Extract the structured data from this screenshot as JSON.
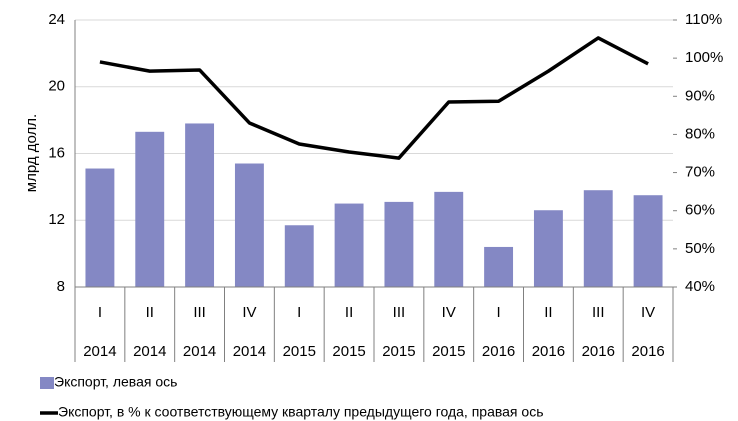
{
  "chart_data": {
    "type": "bar",
    "y_label": "млрд долл.",
    "categories": [
      "I",
      "II",
      "III",
      "IV",
      "I",
      "II",
      "III",
      "IV",
      "I",
      "II",
      "III",
      "IV"
    ],
    "category_groups": [
      "2014",
      "2014",
      "2014",
      "2014",
      "2015",
      "2015",
      "2015",
      "2015",
      "2016",
      "2016",
      "2016",
      "2016"
    ],
    "series": [
      {
        "name": "Экспорт, левая ось",
        "type": "bar",
        "color": "#8488c4",
        "values": [
          15.1,
          17.3,
          17.8,
          15.4,
          11.7,
          13.0,
          13.1,
          13.7,
          10.4,
          12.6,
          13.8,
          13.5
        ]
      },
      {
        "name": "Экспорт, в % к соответствующему кварталу предыдущего года, правая ось",
        "type": "line",
        "axis": "y2",
        "color": "#000000",
        "values": [
          99.0,
          96.6,
          96.9,
          83.0,
          77.5,
          75.4,
          73.8,
          88.5,
          88.7,
          96.6,
          105.3,
          98.5
        ]
      }
    ],
    "ylim": [
      8,
      24
    ],
    "yticks": [
      8,
      12,
      16,
      20,
      24
    ],
    "y2lim": [
      40,
      110
    ],
    "y2ticks": [
      {
        "value": 40,
        "label": "40%"
      },
      {
        "value": 50,
        "label": "50%"
      },
      {
        "value": 60,
        "label": "60%"
      },
      {
        "value": 70,
        "label": "70%"
      },
      {
        "value": 80,
        "label": "80%"
      },
      {
        "value": 90,
        "label": "90%"
      },
      {
        "value": 100,
        "label": "100%"
      },
      {
        "value": 110,
        "label": "110%"
      }
    ],
    "grid": true
  }
}
